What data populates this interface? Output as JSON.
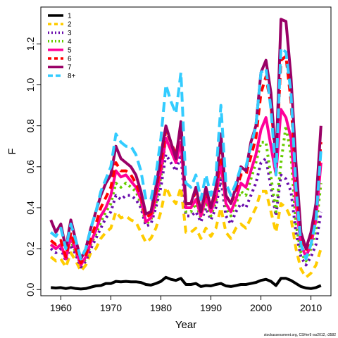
{
  "chart_data": {
    "type": "line",
    "title": "",
    "xlabel": "Year",
    "ylabel": "F",
    "xlim": [
      1956,
      2014
    ],
    "ylim": [
      -0.03,
      1.38
    ],
    "xticks": [
      1960,
      1970,
      1980,
      1990,
      2000,
      2010
    ],
    "yticks": [
      0.0,
      0.2,
      0.4,
      0.6,
      0.8,
      1.0,
      1.2
    ],
    "ytick_labels": [
      "0.0",
      "0.2",
      "0.4",
      "0.6",
      "0.8",
      "1.0",
      "1.2"
    ],
    "grid": false,
    "legend_position": "top-left",
    "x": [
      1958,
      1959,
      1960,
      1961,
      1962,
      1963,
      1964,
      1965,
      1966,
      1967,
      1968,
      1969,
      1970,
      1971,
      1972,
      1973,
      1974,
      1975,
      1976,
      1977,
      1978,
      1979,
      1980,
      1981,
      1982,
      1983,
      1984,
      1985,
      1986,
      1987,
      1988,
      1989,
      1990,
      1991,
      1992,
      1993,
      1994,
      1995,
      1996,
      1997,
      1998,
      1999,
      2000,
      2001,
      2002,
      2003,
      2004,
      2005,
      2006,
      2007,
      2008,
      2009,
      2010,
      2011,
      2012
    ],
    "series": [
      {
        "name": "1",
        "color": "#000000",
        "dash": "",
        "values": [
          0.01,
          0.008,
          0.01,
          0.005,
          0.01,
          0.005,
          0.003,
          0.005,
          0.012,
          0.018,
          0.02,
          0.03,
          0.03,
          0.04,
          0.038,
          0.04,
          0.038,
          0.038,
          0.035,
          0.025,
          0.022,
          0.03,
          0.04,
          0.06,
          0.05,
          0.045,
          0.055,
          0.025,
          0.025,
          0.03,
          0.015,
          0.02,
          0.018,
          0.025,
          0.03,
          0.018,
          0.015,
          0.02,
          0.025,
          0.025,
          0.03,
          0.035,
          0.045,
          0.05,
          0.04,
          0.02,
          0.055,
          0.055,
          0.045,
          0.03,
          0.015,
          0.008,
          0.005,
          0.01,
          0.02
        ]
      },
      {
        "name": "2",
        "color": "#ffcc00",
        "dash": "10,7",
        "values": [
          0.16,
          0.14,
          0.15,
          0.11,
          0.18,
          0.14,
          0.09,
          0.12,
          0.18,
          0.2,
          0.25,
          0.28,
          0.3,
          0.38,
          0.35,
          0.36,
          0.34,
          0.33,
          0.28,
          0.23,
          0.25,
          0.3,
          0.38,
          0.5,
          0.45,
          0.42,
          0.5,
          0.28,
          0.28,
          0.3,
          0.25,
          0.3,
          0.26,
          0.3,
          0.4,
          0.28,
          0.25,
          0.3,
          0.32,
          0.3,
          0.35,
          0.4,
          0.48,
          0.48,
          0.38,
          0.28,
          0.42,
          0.4,
          0.35,
          0.2,
          0.1,
          0.06,
          0.08,
          0.12,
          0.2
        ]
      },
      {
        "name": "3",
        "color": "#6a0dad",
        "dash": "3,5",
        "values": [
          0.2,
          0.18,
          0.2,
          0.14,
          0.22,
          0.17,
          0.11,
          0.14,
          0.2,
          0.25,
          0.3,
          0.35,
          0.38,
          0.46,
          0.44,
          0.46,
          0.46,
          0.44,
          0.4,
          0.31,
          0.32,
          0.4,
          0.5,
          0.66,
          0.62,
          0.58,
          0.66,
          0.36,
          0.36,
          0.38,
          0.33,
          0.4,
          0.34,
          0.4,
          0.54,
          0.36,
          0.32,
          0.38,
          0.42,
          0.4,
          0.46,
          0.52,
          0.62,
          0.64,
          0.5,
          0.36,
          0.56,
          0.54,
          0.48,
          0.28,
          0.16,
          0.12,
          0.16,
          0.22,
          0.38
        ]
      },
      {
        "name": "4",
        "color": "#66cc00",
        "dash": "3,5",
        "values": [
          0.22,
          0.2,
          0.22,
          0.15,
          0.24,
          0.18,
          0.12,
          0.15,
          0.22,
          0.27,
          0.33,
          0.38,
          0.42,
          0.52,
          0.5,
          0.52,
          0.5,
          0.48,
          0.42,
          0.32,
          0.34,
          0.42,
          0.55,
          0.74,
          0.68,
          0.64,
          0.72,
          0.38,
          0.38,
          0.42,
          0.35,
          0.43,
          0.36,
          0.43,
          0.6,
          0.4,
          0.36,
          0.42,
          0.48,
          0.46,
          0.54,
          0.62,
          0.72,
          0.72,
          0.55,
          0.38,
          0.62,
          0.8,
          0.66,
          0.32,
          0.18,
          0.14,
          0.2,
          0.3,
          0.52
        ]
      },
      {
        "name": "5",
        "color": "#ff0099",
        "dash": "",
        "values": [
          0.22,
          0.2,
          0.22,
          0.15,
          0.26,
          0.19,
          0.12,
          0.16,
          0.23,
          0.29,
          0.36,
          0.4,
          0.46,
          0.58,
          0.55,
          0.56,
          0.53,
          0.5,
          0.44,
          0.33,
          0.35,
          0.45,
          0.58,
          0.74,
          0.68,
          0.62,
          0.72,
          0.4,
          0.4,
          0.44,
          0.36,
          0.45,
          0.38,
          0.45,
          0.62,
          0.42,
          0.38,
          0.44,
          0.52,
          0.5,
          0.58,
          0.66,
          0.78,
          0.84,
          0.7,
          0.56,
          0.88,
          0.84,
          0.74,
          0.42,
          0.22,
          0.16,
          0.22,
          0.34,
          0.62
        ]
      },
      {
        "name": "6",
        "color": "#ff0000",
        "dash": "10,7",
        "values": [
          0.24,
          0.22,
          0.24,
          0.16,
          0.28,
          0.2,
          0.13,
          0.17,
          0.25,
          0.32,
          0.4,
          0.45,
          0.5,
          0.62,
          0.58,
          0.58,
          0.56,
          0.52,
          0.46,
          0.35,
          0.37,
          0.48,
          0.62,
          0.78,
          0.72,
          0.66,
          0.78,
          0.42,
          0.42,
          0.48,
          0.38,
          0.48,
          0.4,
          0.48,
          0.68,
          0.46,
          0.42,
          0.48,
          0.56,
          0.56,
          0.65,
          0.74,
          0.96,
          1.04,
          0.9,
          0.62,
          1.12,
          1.14,
          0.92,
          0.52,
          0.26,
          0.19,
          0.26,
          0.4,
          0.72
        ]
      },
      {
        "name": "7",
        "color": "#990066",
        "dash": "",
        "values": [
          0.34,
          0.28,
          0.32,
          0.2,
          0.34,
          0.24,
          0.15,
          0.2,
          0.3,
          0.38,
          0.46,
          0.52,
          0.56,
          0.7,
          0.64,
          0.62,
          0.6,
          0.56,
          0.48,
          0.37,
          0.38,
          0.5,
          0.66,
          0.8,
          0.72,
          0.64,
          0.82,
          0.42,
          0.42,
          0.5,
          0.38,
          0.5,
          0.4,
          0.5,
          0.76,
          0.46,
          0.42,
          0.5,
          0.6,
          0.58,
          0.72,
          0.8,
          1.06,
          1.12,
          0.96,
          0.62,
          1.32,
          1.31,
          1.04,
          0.62,
          0.28,
          0.2,
          0.28,
          0.42,
          0.8
        ]
      },
      {
        "name": "8+",
        "color": "#33ccff",
        "dash": "14,7",
        "values": [
          0.28,
          0.26,
          0.3,
          0.2,
          0.32,
          0.24,
          0.15,
          0.2,
          0.3,
          0.38,
          0.48,
          0.54,
          0.6,
          0.76,
          0.72,
          0.7,
          0.7,
          0.66,
          0.58,
          0.44,
          0.44,
          0.56,
          0.74,
          1.0,
          0.92,
          0.86,
          1.06,
          0.52,
          0.5,
          0.56,
          0.44,
          0.56,
          0.46,
          0.56,
          0.9,
          0.52,
          0.46,
          0.52,
          0.6,
          0.6,
          0.7,
          0.8,
          1.06,
          1.08,
          0.88,
          0.56,
          1.18,
          1.16,
          0.96,
          0.5,
          0.22,
          0.15,
          0.22,
          0.34,
          0.68
        ]
      }
    ]
  },
  "footer": "stockassessment.org, CSHer9 rss2012, r3582"
}
